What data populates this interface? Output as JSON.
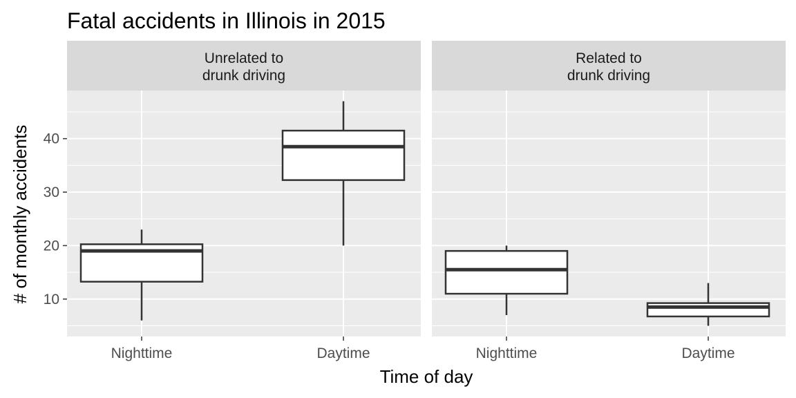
{
  "chart_data": {
    "type": "box",
    "title": "Fatal accidents in Illinois in 2015",
    "xlabel": "Time of day",
    "ylabel": "# of monthly accidents",
    "categories": [
      "Nighttime",
      "Daytime"
    ],
    "ylim": [
      3,
      49
    ],
    "yticks": [
      10,
      20,
      30,
      40
    ],
    "grid": true,
    "colors": {
      "panel_bg": "#ebebeb",
      "strip_bg": "#d9d9d9",
      "grid": "#ffffff",
      "box_fill": "#ffffff",
      "box_stroke": "#333333"
    },
    "panels": [
      {
        "strip_lines": [
          "Unrelated to",
          "drunk driving"
        ],
        "boxes": [
          {
            "category": "Nighttime",
            "min": 6,
            "q1": 13.25,
            "median": 19,
            "q3": 20.25,
            "max": 23
          },
          {
            "category": "Daytime",
            "min": 20,
            "q1": 32.25,
            "median": 38.5,
            "q3": 41.5,
            "max": 47
          }
        ]
      },
      {
        "strip_lines": [
          "Related to",
          "drunk driving"
        ],
        "boxes": [
          {
            "category": "Nighttime",
            "min": 7,
            "q1": 11,
            "median": 15.5,
            "q3": 19,
            "max": 20
          },
          {
            "category": "Daytime",
            "min": 5,
            "q1": 6.75,
            "median": 8.5,
            "q3": 9.25,
            "max": 13
          }
        ]
      }
    ]
  }
}
